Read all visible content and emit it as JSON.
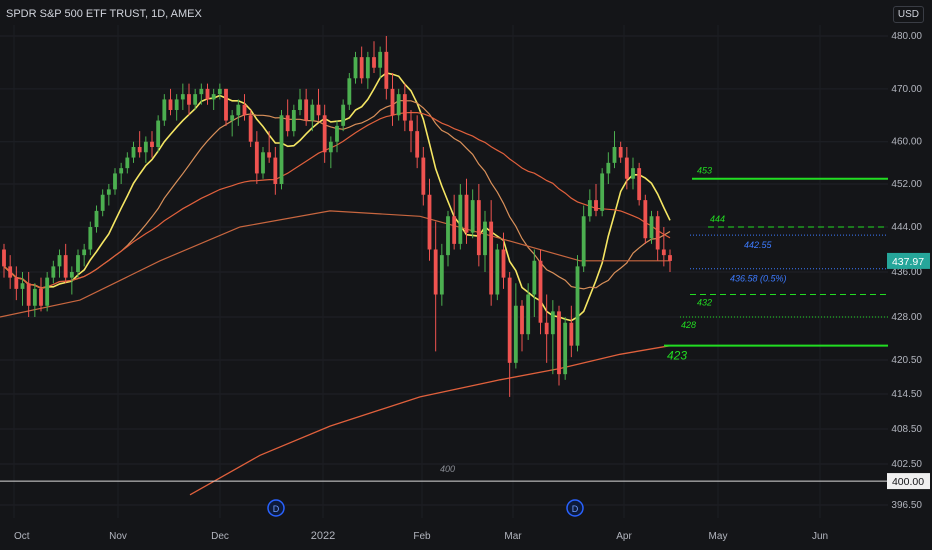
{
  "header": {
    "title": "SPDR S&P 500 ETF TRUST, 1D, AMEX",
    "currency": "USD"
  },
  "colors": {
    "background": "#141518",
    "up": "#4caf50",
    "down": "#ef5350",
    "ma_fast": "#f5e663",
    "ma_mid": "#d9905a",
    "ma_slow": "#e0603c",
    "level_green": "#22dd22",
    "level_blue": "#3d7bff",
    "price_badge": "#26a69a"
  },
  "chart_data": {
    "type": "candlestick",
    "instrument": "SPDR S&P 500 ETF TRUST",
    "interval": "1D",
    "exchange": "AMEX",
    "y_ticks": [
      "480.00",
      "470.00",
      "460.00",
      "452.00",
      "444.00",
      "436.00",
      "428.00",
      "420.50",
      "414.50",
      "408.50",
      "402.50",
      "396.50"
    ],
    "y_tick_values": [
      480,
      470,
      460,
      452,
      444,
      436,
      428,
      420.5,
      414.5,
      408.5,
      402.5,
      396.5
    ],
    "x_labels": [
      "Oct",
      "Nov",
      "Dec",
      "2022",
      "Feb",
      "Mar",
      "Apr",
      "May",
      "Jun"
    ],
    "last_price": {
      "value": 437.97,
      "label": "437.97"
    },
    "line_400": {
      "value": 400,
      "label": "400.00",
      "annotation": "400"
    },
    "levels": [
      {
        "value": 453,
        "label": "453",
        "style": "solid",
        "color": "green"
      },
      {
        "value": 444,
        "label": "444",
        "style": "dashed",
        "color": "green"
      },
      {
        "value": 442.55,
        "label": "442.55",
        "style": "dotted",
        "color": "blue"
      },
      {
        "value": 436.58,
        "label": "436.58 (0.5%)",
        "style": "dotted",
        "color": "blue"
      },
      {
        "value": 432,
        "label": "432",
        "style": "dashed",
        "color": "green"
      },
      {
        "value": 428,
        "label": "428",
        "style": "dotted",
        "color": "green"
      },
      {
        "value": 423,
        "label": "423",
        "style": "solid",
        "color": "green"
      }
    ],
    "event_markers": [
      {
        "label": "D",
        "date": "Dec"
      },
      {
        "label": "D",
        "date": "Mar"
      }
    ],
    "candles": [
      [
        440,
        441,
        435,
        437
      ],
      [
        437,
        439,
        433,
        435
      ],
      [
        435,
        437,
        431,
        433
      ],
      [
        433,
        436,
        430,
        434
      ],
      [
        434,
        436,
        428,
        430
      ],
      [
        430,
        434,
        428,
        433
      ],
      [
        433,
        435,
        429,
        430
      ],
      [
        430,
        436,
        429,
        435
      ],
      [
        435,
        438,
        434,
        437
      ],
      [
        437,
        440,
        435,
        439
      ],
      [
        439,
        441,
        434,
        435
      ],
      [
        435,
        437,
        432,
        436
      ],
      [
        436,
        440,
        435,
        439
      ],
      [
        439,
        441,
        437,
        440
      ],
      [
        440,
        445,
        439,
        444
      ],
      [
        444,
        448,
        443,
        447
      ],
      [
        447,
        451,
        446,
        450
      ],
      [
        450,
        452,
        448,
        451
      ],
      [
        451,
        455,
        450,
        454
      ],
      [
        454,
        456,
        452,
        455
      ],
      [
        455,
        458,
        454,
        457
      ],
      [
        457,
        460,
        456,
        459
      ],
      [
        459,
        462,
        457,
        458
      ],
      [
        458,
        461,
        456,
        460
      ],
      [
        460,
        462,
        457,
        459
      ],
      [
        459,
        465,
        458,
        464
      ],
      [
        464,
        469,
        463,
        468
      ],
      [
        468,
        470,
        465,
        466
      ],
      [
        466,
        469,
        464,
        468
      ],
      [
        468,
        471,
        466,
        469
      ],
      [
        469,
        471,
        465,
        467
      ],
      [
        467,
        470,
        466,
        469
      ],
      [
        469,
        471,
        467,
        470
      ],
      [
        470,
        471,
        467,
        468
      ],
      [
        468,
        470,
        466,
        469
      ],
      [
        469,
        471,
        468,
        470
      ],
      [
        470,
        470,
        463,
        464
      ],
      [
        464,
        466,
        461,
        465
      ],
      [
        465,
        468,
        463,
        467
      ],
      [
        467,
        469,
        464,
        465
      ],
      [
        465,
        466,
        459,
        460
      ],
      [
        460,
        462,
        452,
        454
      ],
      [
        454,
        459,
        453,
        458
      ],
      [
        458,
        462,
        456,
        457
      ],
      [
        457,
        459,
        450,
        452
      ],
      [
        452,
        466,
        451,
        465
      ],
      [
        465,
        468,
        461,
        462
      ],
      [
        462,
        467,
        461,
        466
      ],
      [
        466,
        470,
        465,
        468
      ],
      [
        468,
        470,
        463,
        464
      ],
      [
        464,
        468,
        462,
        467
      ],
      [
        467,
        470,
        464,
        465
      ],
      [
        465,
        467,
        456,
        458
      ],
      [
        458,
        461,
        455,
        460
      ],
      [
        460,
        464,
        458,
        463
      ],
      [
        463,
        468,
        462,
        467
      ],
      [
        467,
        473,
        466,
        472
      ],
      [
        472,
        477,
        471,
        476
      ],
      [
        476,
        478,
        471,
        472
      ],
      [
        472,
        477,
        470,
        476
      ],
      [
        476,
        479,
        473,
        474
      ],
      [
        474,
        478,
        472,
        477
      ],
      [
        477,
        480,
        468,
        470
      ],
      [
        470,
        473,
        463,
        465
      ],
      [
        465,
        470,
        464,
        469
      ],
      [
        469,
        471,
        462,
        464
      ],
      [
        464,
        466,
        458,
        462
      ],
      [
        462,
        465,
        455,
        457
      ],
      [
        457,
        459,
        448,
        450
      ],
      [
        450,
        453,
        438,
        440
      ],
      [
        440,
        445,
        422,
        432
      ],
      [
        432,
        441,
        430,
        439
      ],
      [
        439,
        447,
        437,
        446
      ],
      [
        446,
        450,
        440,
        441
      ],
      [
        441,
        452,
        440,
        450
      ],
      [
        450,
        453,
        441,
        443
      ],
      [
        443,
        451,
        442,
        449
      ],
      [
        449,
        452,
        437,
        439
      ],
      [
        439,
        447,
        436,
        445
      ],
      [
        445,
        449,
        430,
        432
      ],
      [
        432,
        441,
        431,
        440
      ],
      [
        440,
        443,
        433,
        435
      ],
      [
        435,
        436,
        414,
        420
      ],
      [
        420,
        434,
        419,
        430
      ],
      [
        430,
        431,
        422,
        425
      ],
      [
        425,
        434,
        424,
        432
      ],
      [
        432,
        440,
        428,
        438
      ],
      [
        438,
        440,
        425,
        427
      ],
      [
        427,
        432,
        420,
        425
      ],
      [
        425,
        431,
        418,
        429
      ],
      [
        429,
        430,
        416,
        418
      ],
      [
        418,
        428,
        417,
        427
      ],
      [
        427,
        430,
        421,
        423
      ],
      [
        423,
        439,
        422,
        437
      ],
      [
        437,
        448,
        436,
        446
      ],
      [
        446,
        451,
        445,
        449
      ],
      [
        449,
        452,
        446,
        447
      ],
      [
        447,
        455,
        446,
        454
      ],
      [
        454,
        458,
        452,
        456
      ],
      [
        456,
        462,
        455,
        459
      ],
      [
        459,
        460,
        456,
        457
      ],
      [
        457,
        459,
        451,
        453
      ],
      [
        453,
        457,
        451,
        455
      ],
      [
        455,
        456,
        448,
        449
      ],
      [
        449,
        450,
        441,
        442
      ],
      [
        442,
        447,
        441,
        446
      ],
      [
        446,
        447,
        438,
        440
      ],
      [
        440,
        444,
        437,
        439
      ],
      [
        439,
        440,
        436,
        437.97
      ]
    ]
  }
}
